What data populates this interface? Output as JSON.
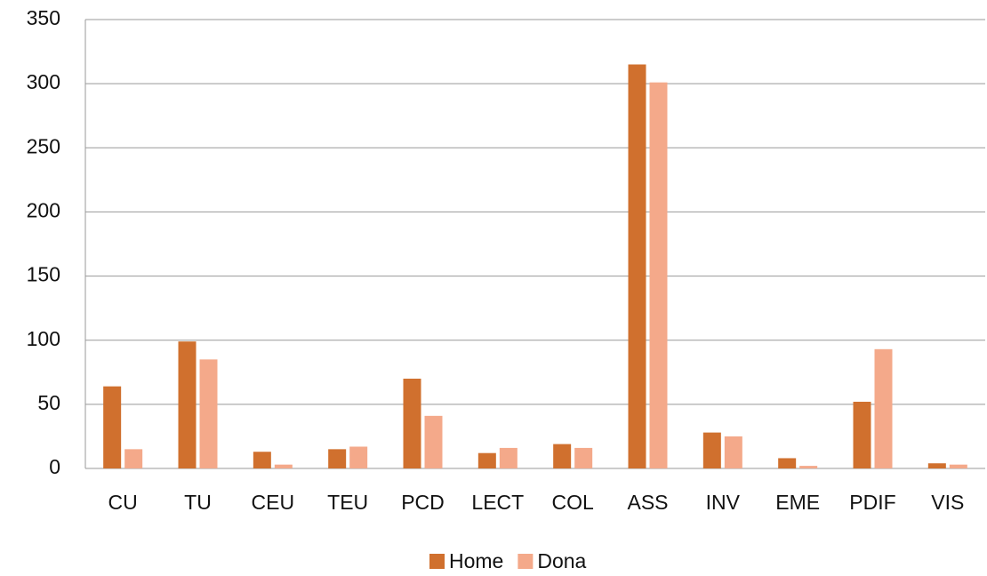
{
  "chart_data": {
    "type": "bar",
    "categories": [
      "CU",
      "TU",
      "CEU",
      "TEU",
      "PCD",
      "LECT",
      "COL",
      "ASS",
      "INV",
      "EME",
      "PDIF",
      "VIS"
    ],
    "series": [
      {
        "name": "Home",
        "color": "#d0702e",
        "values": [
          64,
          99,
          13,
          15,
          70,
          12,
          19,
          315,
          28,
          8,
          52,
          4
        ]
      },
      {
        "name": "Dona",
        "color": "#f4a98a",
        "values": [
          15,
          85,
          3,
          17,
          41,
          16,
          16,
          301,
          25,
          2,
          93,
          3
        ]
      }
    ],
    "ylim": [
      0,
      350
    ],
    "yticks": [
      0,
      50,
      100,
      150,
      200,
      250,
      300,
      350
    ],
    "grid": true,
    "legend": "bottom"
  }
}
